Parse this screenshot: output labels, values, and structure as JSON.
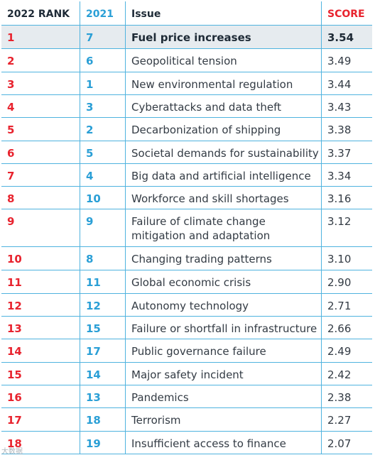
{
  "header": {
    "rank": "2022 RANK",
    "prev": "2021",
    "issue": "Issue",
    "score": "SCORE"
  },
  "rows": [
    {
      "rank": "1",
      "prev": "7",
      "issue": "Fuel price increases",
      "score": "3.54"
    },
    {
      "rank": "2",
      "prev": "6",
      "issue": "Geopolitical tension",
      "score": "3.49"
    },
    {
      "rank": "3",
      "prev": "1",
      "issue": "New environmental regulation",
      "score": "3.44"
    },
    {
      "rank": "4",
      "prev": "3",
      "issue": "Cyberattacks and data theft",
      "score": "3.43"
    },
    {
      "rank": "5",
      "prev": "2",
      "issue": "Decarbonization of shipping",
      "score": "3.38"
    },
    {
      "rank": "6",
      "prev": "5",
      "issue": "Societal demands for sustainability",
      "score": "3.37"
    },
    {
      "rank": "7",
      "prev": "4",
      "issue": "Big data and artificial intelligence",
      "score": "3.34"
    },
    {
      "rank": "8",
      "prev": "10",
      "issue": "Workforce and skill shortages",
      "score": "3.16"
    },
    {
      "rank": "9",
      "prev": "9",
      "issue": "Failure of climate change mitigation and adaptation",
      "score": "3.12"
    },
    {
      "rank": "10",
      "prev": "8",
      "issue": "Changing trading patterns",
      "score": "3.10"
    },
    {
      "rank": "11",
      "prev": "11",
      "issue": "Global economic crisis",
      "score": "2.90"
    },
    {
      "rank": "12",
      "prev": "12",
      "issue": "Autonomy technology",
      "score": "2.71"
    },
    {
      "rank": "13",
      "prev": "15",
      "issue": "Failure or shortfall in infrastructure",
      "score": "2.66"
    },
    {
      "rank": "14",
      "prev": "17",
      "issue": "Public governance failure",
      "score": "2.49"
    },
    {
      "rank": "15",
      "prev": "14",
      "issue": "Major safety incident",
      "score": "2.42"
    },
    {
      "rank": "16",
      "prev": "13",
      "issue": "Pandemics",
      "score": "2.38"
    },
    {
      "rank": "17",
      "prev": "18",
      "issue": "Terrorism",
      "score": "2.27"
    },
    {
      "rank": "18",
      "prev": "19",
      "issue": "Insufficient access to finance",
      "score": "2.07"
    }
  ],
  "watermark": "大数据",
  "colors": {
    "rank_red": "#e8232e",
    "prev_blue": "#2a9fd6",
    "rule_blue": "#4fb3df",
    "highlight_bg": "#e6ebef"
  }
}
